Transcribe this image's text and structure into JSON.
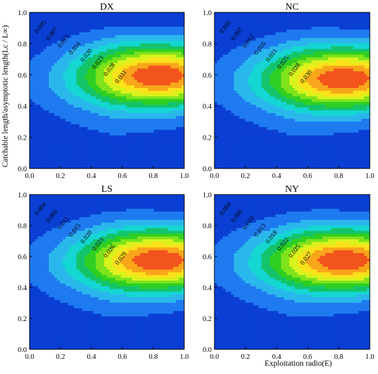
{
  "figure": {
    "ylabel": "Catchable length/asymptotic length(Lc / L∞)",
    "xlabel": "Exploitation radio(E)"
  },
  "chart_data": [
    {
      "type": "heatmap",
      "title": "DX",
      "xlabel": "",
      "ylabel": "Catchable length/asymptotic length(Lc / L∞)",
      "xlim": [
        0,
        1
      ],
      "ylim": [
        0,
        1
      ],
      "x_ticks": [
        "0.0",
        "0.2",
        "0.4",
        "0.6",
        "0.8",
        "1.0"
      ],
      "y_ticks": [
        "0.0",
        "0.2",
        "0.4",
        "0.6",
        "0.8",
        "1.0"
      ],
      "contour_labels": [
        "0.005",
        "0.007",
        "0.013",
        "0.016",
        "0.020",
        "0.023",
        "0.028",
        "0.031"
      ],
      "max_value": 0.031,
      "peak": {
        "x": 0.85,
        "y": 0.6
      }
    },
    {
      "type": "heatmap",
      "title": "NC",
      "xlabel": "",
      "ylabel": "",
      "xlim": [
        0,
        1
      ],
      "ylim": [
        0,
        1
      ],
      "x_ticks": [
        "0.0",
        "0.2",
        "0.4",
        "0.6",
        "0.8",
        "1.0"
      ],
      "y_ticks": [
        "0.0",
        "0.2",
        "0.4",
        "0.6",
        "0.8",
        "1.0"
      ],
      "contour_labels": [
        "0.005",
        "0.007",
        "0.012",
        "0.016",
        "0.021",
        "0.025",
        "0.028",
        "0.030"
      ],
      "max_value": 0.03,
      "peak": {
        "x": 0.85,
        "y": 0.58
      }
    },
    {
      "type": "heatmap",
      "title": "LS",
      "xlabel": "",
      "ylabel": "",
      "xlim": [
        0,
        1
      ],
      "ylim": [
        0,
        1
      ],
      "x_ticks": [
        "0.0",
        "0.2",
        "0.4",
        "0.6",
        "0.8",
        "1.0"
      ],
      "y_ticks": [
        "0.0",
        "0.2",
        "0.4",
        "0.6",
        "0.8",
        "1.0"
      ],
      "contour_labels": [
        "0.004",
        "0.006",
        "0.011",
        "0.015",
        "0.020",
        "0.023",
        "0.026",
        "0.029"
      ],
      "max_value": 0.029,
      "peak": {
        "x": 0.85,
        "y": 0.58
      }
    },
    {
      "type": "heatmap",
      "title": "NY",
      "xlabel": "Exploitation radio(E)",
      "ylabel": "",
      "xlim": [
        0,
        1
      ],
      "ylim": [
        0,
        1
      ],
      "x_ticks": [
        "0.0",
        "0.2",
        "0.4",
        "0.6",
        "0.8",
        "1.0"
      ],
      "y_ticks": [
        "0.0",
        "0.2",
        "0.4",
        "0.6",
        "0.8",
        "1.0"
      ],
      "contour_labels": [
        "0.004",
        "0.006",
        "0.010",
        "0.013",
        "0.018",
        "0.022",
        "0.025",
        "0.027"
      ],
      "max_value": 0.027,
      "peak": {
        "x": 0.85,
        "y": 0.58
      }
    }
  ],
  "colors": [
    "#0a3fd4",
    "#1f7af0",
    "#2ab8ec",
    "#15d6d2",
    "#14c46a",
    "#2fcf23",
    "#7ee31b",
    "#d8f21d",
    "#fbe21a",
    "#f8a61b",
    "#f2541d"
  ]
}
